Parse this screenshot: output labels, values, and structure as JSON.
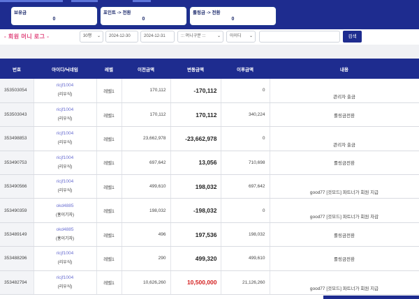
{
  "summary": [
    {
      "label": "보유금",
      "value": "0"
    },
    {
      "label": "포인트 -> 전환",
      "value": "0"
    },
    {
      "label": "롤링금 -> 전환",
      "value": "0"
    }
  ],
  "filters": {
    "title": "- 회원 머니 로그 -",
    "rows_per_page": "30행",
    "date_from": "2024-12-30",
    "date_to": "2024-12-31",
    "money_type": "::: 머니구분 :::",
    "search_field": "아이디",
    "search_value": "",
    "search_button": "검색"
  },
  "table": {
    "headers": [
      "번호",
      "아이디/닉네임",
      "레벨",
      "이전금액",
      "변동금액",
      "이후금액",
      "내용"
    ],
    "rows": [
      {
        "no": "353503054",
        "uid": "ricjf1004",
        "nick": "(리우식)",
        "level": "레벨1",
        "before": "170,112",
        "change": "-170,112",
        "after": "0",
        "memo": "관리자 출금"
      },
      {
        "no": "353503043",
        "uid": "ricjf1004",
        "nick": "(리우식)",
        "level": "레벨1",
        "before": "170,112",
        "change": "170,112",
        "after": "340,224",
        "memo": "롤링금전환"
      },
      {
        "no": "353498853",
        "uid": "ricjf1004",
        "nick": "(리우식)",
        "level": "레벨1",
        "before": "23,662,978",
        "change": "-23,662,978",
        "after": "0",
        "memo": "관리자 출금"
      },
      {
        "no": "353490753",
        "uid": "ricjf1004",
        "nick": "(리우식)",
        "level": "레벨1",
        "before": "697,642",
        "change": "13,056",
        "after": "710,698",
        "memo": "롤링금전환"
      },
      {
        "no": "353490566",
        "uid": "ricjf1004",
        "nick": "(리우식)",
        "level": "레벨1",
        "before": "499,610",
        "change": "198,032",
        "after": "697,642",
        "memo": "good77 [것모드] 파트너가 회원 지급"
      },
      {
        "no": "353490359",
        "uid": "okd4885",
        "nick": "(홍이기자)",
        "level": "레벨1",
        "before": "198,032",
        "change": "-198,032",
        "after": "0",
        "memo": "good77 [것모드] 파트너가 회원 차감"
      },
      {
        "no": "353489149",
        "uid": "okd4885",
        "nick": "(홍이기자)",
        "level": "레벨1",
        "before": "496",
        "change": "197,536",
        "after": "198,032",
        "memo": "롤링금전환"
      },
      {
        "no": "353488296",
        "uid": "ricjf1004",
        "nick": "(리우식)",
        "level": "레벨1",
        "before": "290",
        "change": "499,320",
        "after": "499,610",
        "memo": "롤링금전환"
      },
      {
        "no": "353482794",
        "uid": "ricjf1004",
        "nick": "(리우식)",
        "level": "레벨1",
        "before": "10,626,260",
        "change": "10,500,000",
        "after": "21,126,260",
        "memo": "good77 [것모드] 파트너가 회원 지급",
        "highlight": true
      }
    ]
  },
  "colors": {
    "brand_navy": "#1e2c8f",
    "title_pink": "#e0457c",
    "link_purple": "#6a6fd1",
    "alert_red": "#d42020"
  },
  "icons": {
    "dropdown": "chevron-down-icon"
  }
}
